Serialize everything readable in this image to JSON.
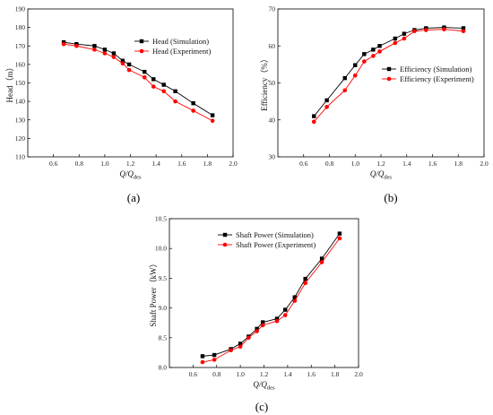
{
  "chart_data": [
    {
      "id": "a",
      "type": "line",
      "panel_label": "(a)",
      "title": "",
      "xlabel": "Q/Qdes",
      "xlabel_main": "Q/Q",
      "xlabel_sub": "des",
      "ylabel": "Head（m）",
      "xlim": [
        0.4,
        2.0
      ],
      "ylim": [
        110,
        190
      ],
      "xticks": [
        "0.6",
        "0.8",
        "1.0",
        "1.2",
        "1.4",
        "1.6",
        "1.8",
        "2.0"
      ],
      "yticks": [
        "110",
        "120",
        "130",
        "140",
        "150",
        "160",
        "170",
        "180",
        "190"
      ],
      "legend_position": "top-right",
      "series": [
        {
          "name": "Head (Simulation)",
          "color": "#000000",
          "marker": "square",
          "x": [
            0.68,
            0.78,
            0.92,
            1.0,
            1.07,
            1.14,
            1.19,
            1.31,
            1.38,
            1.46,
            1.55,
            1.69,
            1.84
          ],
          "y": [
            172,
            171,
            170,
            168,
            166,
            162,
            160,
            156,
            152,
            149,
            145.5,
            139,
            132.5
          ]
        },
        {
          "name": "Head (Experiment)",
          "color": "#ff0000",
          "marker": "circle",
          "x": [
            0.68,
            0.78,
            0.92,
            1.0,
            1.07,
            1.14,
            1.19,
            1.31,
            1.38,
            1.46,
            1.55,
            1.69,
            1.84
          ],
          "y": [
            171,
            170,
            168,
            166,
            164,
            160.5,
            157,
            153,
            148,
            145.5,
            140,
            135,
            129.5
          ]
        }
      ]
    },
    {
      "id": "b",
      "type": "line",
      "panel_label": "(b)",
      "title": "",
      "xlabel": "Q/Qdes",
      "xlabel_main": "Q/Q",
      "xlabel_sub": "des",
      "ylabel": "Efficiency（%）",
      "xlim": [
        0.4,
        2.0
      ],
      "ylim": [
        30,
        70
      ],
      "xticks": [
        "0.6",
        "0.8",
        "1.0",
        "1.2",
        "1.4",
        "1.6",
        "1.8",
        "2.0"
      ],
      "yticks": [
        "30",
        "40",
        "50",
        "60",
        "70"
      ],
      "legend_position": "center-right",
      "series": [
        {
          "name": "Efficiency (Simulation)",
          "color": "#000000",
          "marker": "square",
          "x": [
            0.68,
            0.78,
            0.92,
            1.0,
            1.07,
            1.14,
            1.19,
            1.31,
            1.38,
            1.46,
            1.55,
            1.69,
            1.84
          ],
          "y": [
            41,
            45.3,
            51.3,
            54.8,
            57.8,
            59,
            60,
            62,
            63.3,
            64.3,
            64.8,
            65,
            64.8
          ]
        },
        {
          "name": "Efficiency (Experiment)",
          "color": "#ff0000",
          "marker": "circle",
          "x": [
            0.68,
            0.78,
            0.92,
            1.0,
            1.07,
            1.14,
            1.19,
            1.31,
            1.38,
            1.46,
            1.55,
            1.69,
            1.84
          ],
          "y": [
            39.5,
            43.5,
            48,
            52,
            55.8,
            57.3,
            58.5,
            60.8,
            62,
            64,
            64.3,
            64.5,
            64
          ]
        }
      ]
    },
    {
      "id": "c",
      "type": "line",
      "panel_label": "(c)",
      "title": "",
      "xlabel": "Q/Qdes",
      "xlabel_main": "Q/Q",
      "xlabel_sub": "des",
      "ylabel": "Shaft Power（kW）",
      "xlim": [
        0.4,
        2.0
      ],
      "ylim": [
        8.0,
        10.5
      ],
      "xticks": [
        "0.6",
        "0.8",
        "1.0",
        "1.2",
        "1.4",
        "1.6",
        "1.8",
        "2.0"
      ],
      "yticks": [
        "8.0",
        "8.5",
        "9.0",
        "9.5",
        "10.0",
        "10.5"
      ],
      "legend_position": "top-left",
      "series": [
        {
          "name": "Shaft Power (Simulation)",
          "color": "#000000",
          "marker": "square",
          "x": [
            0.68,
            0.78,
            0.92,
            1.0,
            1.07,
            1.14,
            1.19,
            1.31,
            1.38,
            1.46,
            1.55,
            1.69,
            1.84
          ],
          "y": [
            8.19,
            8.21,
            8.31,
            8.4,
            8.52,
            8.65,
            8.76,
            8.82,
            8.97,
            9.18,
            9.49,
            9.83,
            10.25
          ]
        },
        {
          "name": "Shaft Power (Experiment)",
          "color": "#ff0000",
          "marker": "circle",
          "x": [
            0.68,
            0.78,
            0.92,
            1.0,
            1.07,
            1.14,
            1.19,
            1.31,
            1.38,
            1.46,
            1.55,
            1.69,
            1.84
          ],
          "y": [
            8.09,
            8.13,
            8.29,
            8.35,
            8.5,
            8.61,
            8.71,
            8.78,
            8.88,
            9.12,
            9.42,
            9.77,
            10.17
          ]
        }
      ]
    }
  ]
}
